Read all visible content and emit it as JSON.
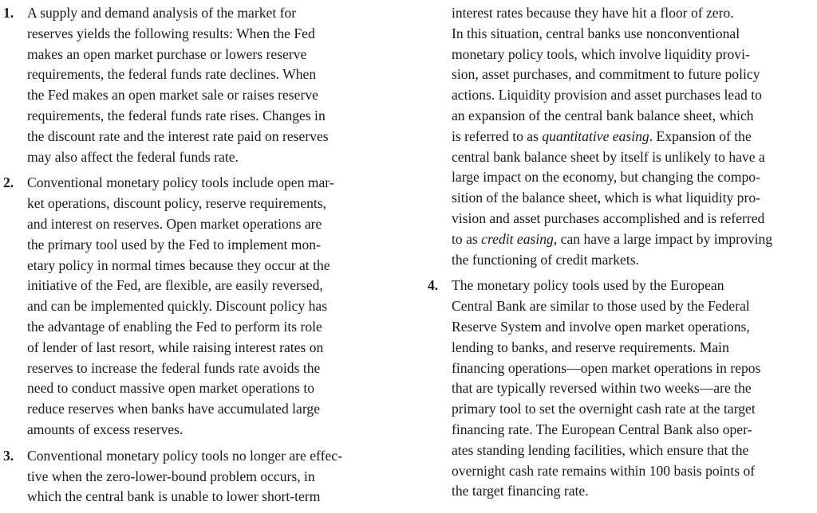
{
  "left_column": [
    {
      "number": "1.",
      "lines": [
        "A supply and demand analysis of the market for",
        "reserves yields the following results: When the Fed",
        "makes an open market purchase or lowers reserve",
        "requirements, the federal funds rate declines. When",
        "the Fed makes an open market sale or raises reserve",
        "requirements, the federal funds rate rises. Changes in",
        "the discount rate and the interest rate paid on reserves",
        "may also affect the federal funds rate."
      ]
    },
    {
      "number": "2.",
      "lines": [
        "Conventional monetary policy tools include open mar-",
        "ket operations, discount policy, reserve requirements,",
        "and interest on reserves. Open market operations are",
        "the primary tool used by the Fed to implement mon-",
        "etary policy in normal times because they occur at the",
        "initiative of the Fed, are flexible, are easily reversed,",
        "and can be implemented quickly. Discount policy has",
        "the advantage of enabling the Fed to perform its role",
        "of lender of last resort, while raising interest rates on",
        "reserves to increase the federal funds rate avoids the",
        "need to conduct massive open market operations to",
        "reduce reserves when banks have accumulated large",
        "amounts of excess reserves."
      ]
    },
    {
      "number": "3.",
      "lines": [
        "Conventional monetary policy tools no longer are effec-",
        "tive when the zero-lower-bound problem occurs, in",
        "which the central bank is unable to lower short-term"
      ]
    }
  ],
  "right_column": {
    "continuation": {
      "l1": "interest rates because they have hit a floor of zero.",
      "l2": "In this situation, central banks use nonconventional",
      "l3": "monetary policy tools, which involve liquidity provi-",
      "l4": "sion, asset purchases, and commitment to future policy",
      "l5": "actions. Liquidity provision and asset purchases lead to",
      "l6": "an expansion of the central bank balance sheet, which",
      "l7_pre": "is referred to as ",
      "l7_em": "quantitative easing",
      "l7_post": ". Expansion of the",
      "l8": "central bank balance sheet by itself is unlikely to have a",
      "l9": "large impact on the economy, but changing the compo-",
      "l10": "sition of the balance sheet, which is what liquidity pro-",
      "l11": "vision and asset purchases accomplished and is referred",
      "l12_pre": "to as ",
      "l12_em": "credit easing",
      "l12_post": ", can have a large impact by improving",
      "l13": "the functioning of credit markets."
    },
    "item4": {
      "number": "4.",
      "lines": [
        "The monetary policy tools used by the European",
        "Central Bank are similar to those used by the Federal",
        "Reserve System and involve open market operations,",
        "lending to banks, and reserve requirements. Main",
        "financing operations—open market operations in repos",
        "that are typically reversed within two weeks—are the",
        "primary tool to set the overnight cash rate at the target",
        "financing rate. The European Central Bank also oper-",
        "ates standing lending facilities, which ensure that the",
        "overnight cash rate remains within 100 basis points of",
        "the target financing rate."
      ]
    }
  }
}
